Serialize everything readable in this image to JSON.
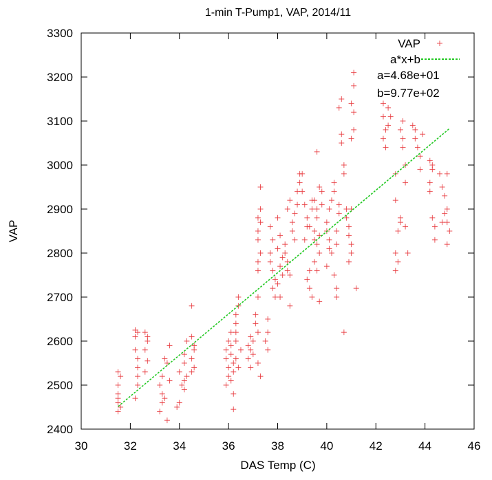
{
  "chart_data": {
    "type": "scatter",
    "title": "1-min T-Pump1, VAP, 2014/11",
    "xlabel": "DAS Temp (C)",
    "ylabel": "VAP",
    "xlim": [
      30,
      46
    ],
    "ylim": [
      2400,
      3300
    ],
    "xticks": [
      "30",
      "32",
      "34",
      "36",
      "38",
      "40",
      "42",
      "44",
      "46"
    ],
    "yticks": [
      "2400",
      "2500",
      "2600",
      "2700",
      "2800",
      "2900",
      "3000",
      "3100",
      "3200",
      "3300"
    ],
    "grid": false,
    "legend_position": "top-right",
    "colors": {
      "points": "#e8383d",
      "fit": "#22c822"
    },
    "series": [
      {
        "name": "VAP",
        "marker": "plus",
        "points": [
          [
            31.5,
            2530
          ],
          [
            31.5,
            2480
          ],
          [
            31.5,
            2460
          ],
          [
            31.5,
            2440
          ],
          [
            31.5,
            2500
          ],
          [
            31.5,
            2470
          ],
          [
            31.6,
            2450
          ],
          [
            31.6,
            2520
          ],
          [
            32.2,
            2625
          ],
          [
            32.2,
            2610
          ],
          [
            32.3,
            2560
          ],
          [
            32.3,
            2540
          ],
          [
            32.2,
            2580
          ],
          [
            32.3,
            2500
          ],
          [
            32.2,
            2470
          ],
          [
            32.3,
            2620
          ],
          [
            32.3,
            2520
          ],
          [
            32.6,
            2620
          ],
          [
            32.7,
            2600
          ],
          [
            32.6,
            2580
          ],
          [
            32.7,
            2555
          ],
          [
            32.6,
            2530
          ],
          [
            32.7,
            2610
          ],
          [
            33.2,
            2500
          ],
          [
            33.3,
            2480
          ],
          [
            33.3,
            2460
          ],
          [
            33.2,
            2440
          ],
          [
            33.4,
            2560
          ],
          [
            33.3,
            2520
          ],
          [
            33.5,
            2550
          ],
          [
            33.4,
            2470
          ],
          [
            33.5,
            2420
          ],
          [
            33.6,
            2510
          ],
          [
            33.6,
            2590
          ],
          [
            33.9,
            2450
          ],
          [
            34.0,
            2460
          ],
          [
            34.0,
            2530
          ],
          [
            34.1,
            2500
          ],
          [
            34.2,
            2570
          ],
          [
            34.2,
            2550
          ],
          [
            34.3,
            2520
          ],
          [
            34.2,
            2490
          ],
          [
            34.3,
            2600
          ],
          [
            34.2,
            2510
          ],
          [
            34.5,
            2680
          ],
          [
            34.5,
            2610
          ],
          [
            34.6,
            2580
          ],
          [
            34.5,
            2560
          ],
          [
            34.6,
            2540
          ],
          [
            34.5,
            2530
          ],
          [
            34.6,
            2590
          ],
          [
            35.9,
            2580
          ],
          [
            35.9,
            2560
          ],
          [
            36.0,
            2540
          ],
          [
            36.0,
            2520
          ],
          [
            35.9,
            2500
          ],
          [
            36.0,
            2600
          ],
          [
            36.1,
            2620
          ],
          [
            36.1,
            2590
          ],
          [
            36.1,
            2570
          ],
          [
            36.2,
            2550
          ],
          [
            36.2,
            2530
          ],
          [
            36.1,
            2510
          ],
          [
            36.2,
            2480
          ],
          [
            36.3,
            2640
          ],
          [
            36.3,
            2660
          ],
          [
            36.3,
            2620
          ],
          [
            36.3,
            2600
          ],
          [
            36.4,
            2680
          ],
          [
            36.4,
            2700
          ],
          [
            36.3,
            2560
          ],
          [
            36.2,
            2445
          ],
          [
            36.4,
            2540
          ],
          [
            36.5,
            2580
          ],
          [
            36.8,
            2560
          ],
          [
            36.8,
            2590
          ],
          [
            36.9,
            2610
          ],
          [
            36.9,
            2540
          ],
          [
            36.9,
            2580
          ],
          [
            37.0,
            2570
          ],
          [
            37.0,
            2600
          ],
          [
            37.1,
            2660
          ],
          [
            37.1,
            2640
          ],
          [
            37.2,
            2700
          ],
          [
            37.2,
            2550
          ],
          [
            37.3,
            2520
          ],
          [
            37.2,
            2620
          ],
          [
            37.2,
            2850
          ],
          [
            37.2,
            2880
          ],
          [
            37.3,
            2900
          ],
          [
            37.3,
            2870
          ],
          [
            37.2,
            2780
          ],
          [
            37.3,
            2800
          ],
          [
            37.2,
            2760
          ],
          [
            37.3,
            2950
          ],
          [
            37.2,
            2830
          ],
          [
            37.6,
            2650
          ],
          [
            37.6,
            2620
          ],
          [
            37.5,
            2600
          ],
          [
            37.6,
            2580
          ],
          [
            37.7,
            2800
          ],
          [
            37.8,
            2830
          ],
          [
            37.7,
            2780
          ],
          [
            37.8,
            2760
          ],
          [
            37.9,
            2740
          ],
          [
            37.8,
            2720
          ],
          [
            37.9,
            2700
          ],
          [
            37.7,
            2860
          ],
          [
            38.0,
            2880
          ],
          [
            38.1,
            2840
          ],
          [
            38.0,
            2810
          ],
          [
            38.2,
            2790
          ],
          [
            38.1,
            2770
          ],
          [
            38.2,
            2750
          ],
          [
            38.0,
            2730
          ],
          [
            38.1,
            2700
          ],
          [
            38.3,
            2820
          ],
          [
            38.3,
            2800
          ],
          [
            38.4,
            2780
          ],
          [
            38.4,
            2760
          ],
          [
            38.5,
            2750
          ],
          [
            38.5,
            2680
          ],
          [
            38.4,
            2900
          ],
          [
            38.5,
            2920
          ],
          [
            38.6,
            2870
          ],
          [
            38.7,
            2890
          ],
          [
            38.6,
            2850
          ],
          [
            38.8,
            2940
          ],
          [
            38.8,
            2910
          ],
          [
            38.9,
            2960
          ],
          [
            38.9,
            2980
          ],
          [
            38.7,
            2830
          ],
          [
            39.0,
            2980
          ],
          [
            39.0,
            2940
          ],
          [
            39.1,
            2910
          ],
          [
            39.2,
            2880
          ],
          [
            39.2,
            2860
          ],
          [
            39.1,
            2830
          ],
          [
            39.3,
            2760
          ],
          [
            39.2,
            2740
          ],
          [
            39.3,
            2720
          ],
          [
            39.4,
            2700
          ],
          [
            39.4,
            2900
          ],
          [
            39.4,
            2920
          ],
          [
            39.3,
            2860
          ],
          [
            39.5,
            2830
          ],
          [
            39.5,
            2850
          ],
          [
            39.6,
            2880
          ],
          [
            39.6,
            2900
          ],
          [
            39.5,
            2920
          ],
          [
            39.7,
            2840
          ],
          [
            39.6,
            2820
          ],
          [
            39.7,
            2800
          ],
          [
            39.6,
            3030
          ],
          [
            39.7,
            2950
          ],
          [
            39.8,
            2940
          ],
          [
            39.8,
            2910
          ],
          [
            39.5,
            2780
          ],
          [
            39.6,
            2760
          ],
          [
            39.7,
            2690
          ],
          [
            40.0,
            2870
          ],
          [
            40.0,
            2850
          ],
          [
            40.1,
            2830
          ],
          [
            40.1,
            2810
          ],
          [
            40.2,
            2800
          ],
          [
            40.0,
            2770
          ],
          [
            40.1,
            2900
          ],
          [
            40.2,
            2920
          ],
          [
            40.3,
            2940
          ],
          [
            40.3,
            2960
          ],
          [
            40.4,
            2850
          ],
          [
            40.4,
            2820
          ],
          [
            40.3,
            2750
          ],
          [
            40.4,
            2720
          ],
          [
            40.4,
            2700
          ],
          [
            40.5,
            2890
          ],
          [
            40.5,
            2910
          ],
          [
            40.6,
            3050
          ],
          [
            40.6,
            3070
          ],
          [
            40.7,
            3000
          ],
          [
            40.7,
            2980
          ],
          [
            40.5,
            3130
          ],
          [
            40.6,
            3150
          ],
          [
            40.8,
            2900
          ],
          [
            40.8,
            2880
          ],
          [
            40.9,
            2860
          ],
          [
            40.9,
            2840
          ],
          [
            41.0,
            2820
          ],
          [
            41.0,
            2800
          ],
          [
            40.9,
            2780
          ],
          [
            41.0,
            2900
          ],
          [
            41.0,
            3060
          ],
          [
            41.1,
            3080
          ],
          [
            41.1,
            3120
          ],
          [
            41.1,
            3180
          ],
          [
            41.1,
            3210
          ],
          [
            41.0,
            3140
          ],
          [
            41.2,
            2720
          ],
          [
            40.7,
            2620
          ],
          [
            42.3,
            3140
          ],
          [
            42.3,
            3110
          ],
          [
            42.4,
            3080
          ],
          [
            42.3,
            3060
          ],
          [
            42.4,
            3040
          ],
          [
            42.5,
            3090
          ],
          [
            42.6,
            3110
          ],
          [
            42.5,
            3130
          ],
          [
            42.8,
            2980
          ],
          [
            42.8,
            2920
          ],
          [
            42.8,
            2800
          ],
          [
            42.9,
            2780
          ],
          [
            42.8,
            2760
          ],
          [
            42.9,
            2850
          ],
          [
            43.0,
            2870
          ],
          [
            43.0,
            2880
          ],
          [
            43.1,
            3100
          ],
          [
            43.0,
            3080
          ],
          [
            43.1,
            3060
          ],
          [
            43.1,
            3040
          ],
          [
            43.2,
            3000
          ],
          [
            43.2,
            2960
          ],
          [
            43.2,
            2860
          ],
          [
            43.3,
            2800
          ],
          [
            43.5,
            3090
          ],
          [
            43.6,
            3080
          ],
          [
            43.6,
            3060
          ],
          [
            43.7,
            3040
          ],
          [
            43.8,
            3020
          ],
          [
            43.8,
            2990
          ],
          [
            43.9,
            3070
          ],
          [
            44.2,
            2960
          ],
          [
            44.2,
            2940
          ],
          [
            44.3,
            2990
          ],
          [
            44.3,
            3000
          ],
          [
            44.3,
            2880
          ],
          [
            44.4,
            2860
          ],
          [
            44.4,
            2830
          ],
          [
            44.2,
            3010
          ],
          [
            44.6,
            2980
          ],
          [
            44.7,
            2950
          ],
          [
            44.8,
            2930
          ],
          [
            44.9,
            2900
          ],
          [
            44.9,
            2870
          ],
          [
            45.0,
            2850
          ],
          [
            44.9,
            2820
          ],
          [
            44.8,
            2890
          ],
          [
            44.9,
            2980
          ],
          [
            44.7,
            2870
          ]
        ]
      },
      {
        "name": "a*x+b",
        "type": "line",
        "x": [
          31.5,
          45.0
        ],
        "y": [
          2451.2,
          3083.0
        ]
      }
    ],
    "annotations": [
      "a=4.68e+01",
      "b=9.77e+02"
    ]
  }
}
